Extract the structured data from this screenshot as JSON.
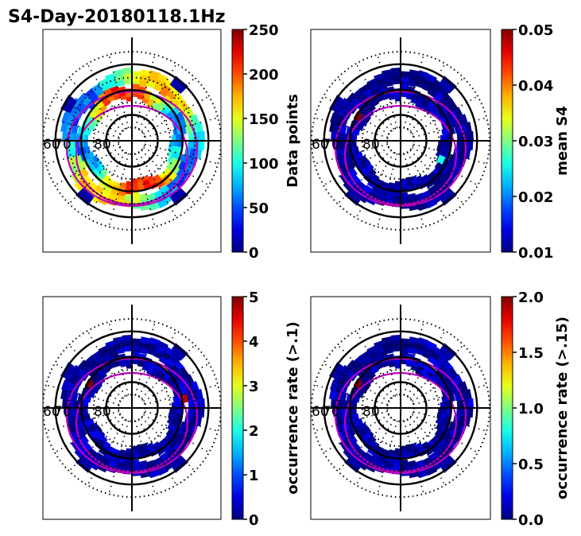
{
  "figure": {
    "title": "S4-Day-20180118.1Hz"
  },
  "colors": {
    "circles": "#000000",
    "boundary": "#c000c0",
    "colormap": "jet"
  },
  "chart_data": [
    {
      "type": "heatmap",
      "projection": "polar",
      "panel": "top-left",
      "colorbar": {
        "label": "Data points",
        "min": 0,
        "max": 250,
        "ticks": [
          "0",
          "50",
          "100",
          "150",
          "200",
          "250"
        ]
      },
      "annotations": [
        "60",
        "70",
        "80"
      ],
      "rings": [
        {
          "r_in": 0.6,
          "r_out": 0.78,
          "base": 0.45,
          "amp": 0.25,
          "phase": 0.6,
          "extend": 0.85
        },
        {
          "r_in": 0.46,
          "r_out": 0.6,
          "base": 0.55,
          "amp": 0.3,
          "phase": 2.1,
          "extend": 0.7
        }
      ]
    },
    {
      "type": "heatmap",
      "projection": "polar",
      "panel": "top-right",
      "colorbar": {
        "label": "mean S4",
        "min": 0.01,
        "max": 0.05,
        "ticks": [
          "0.01",
          "0.02",
          "0.03",
          "0.04",
          "0.05"
        ]
      },
      "annotations": [
        "60",
        "70",
        "80"
      ],
      "rings": [
        {
          "r_in": 0.6,
          "r_out": 0.78,
          "base": 0.03,
          "amp": 0.02,
          "phase": 0.0,
          "extend": 0.85
        },
        {
          "r_in": 0.46,
          "r_out": 0.6,
          "base": 0.03,
          "amp": 0.02,
          "phase": 0.0,
          "extend": 0.7
        }
      ],
      "hotspots": [
        {
          "angle": 300,
          "r": 0.55,
          "value": 1.0
        },
        {
          "angle": 115,
          "r": 0.5,
          "value": 0.4
        }
      ]
    },
    {
      "type": "heatmap",
      "projection": "polar",
      "panel": "bottom-left",
      "colorbar": {
        "label": "occurrence rate (>.1)",
        "min": 0,
        "max": 5,
        "ticks": [
          "0",
          "1",
          "2",
          "3",
          "4",
          "5"
        ]
      },
      "annotations": [
        "60",
        "70",
        "80"
      ],
      "rings": [
        {
          "r_in": 0.6,
          "r_out": 0.78,
          "base": 0.03,
          "amp": 0.02,
          "phase": 0.0,
          "extend": 0.85
        },
        {
          "r_in": 0.46,
          "r_out": 0.6,
          "base": 0.03,
          "amp": 0.02,
          "phase": 0.0,
          "extend": 0.7
        }
      ],
      "hotspots": [
        {
          "angle": 300,
          "r": 0.55,
          "value": 1.0
        },
        {
          "angle": 80,
          "r": 0.6,
          "value": 0.95
        }
      ]
    },
    {
      "type": "heatmap",
      "projection": "polar",
      "panel": "bottom-right",
      "colorbar": {
        "label": "occurrence rate (>.15)",
        "min": 0.0,
        "max": 2.0,
        "ticks": [
          "0.0",
          "0.5",
          "1.0",
          "1.5",
          "2.0"
        ]
      },
      "annotations": [
        "60",
        "70",
        "80"
      ],
      "rings": [
        {
          "r_in": 0.6,
          "r_out": 0.78,
          "base": 0.03,
          "amp": 0.02,
          "phase": 0.0,
          "extend": 0.85
        },
        {
          "r_in": 0.46,
          "r_out": 0.6,
          "base": 0.03,
          "amp": 0.02,
          "phase": 0.0,
          "extend": 0.7
        }
      ],
      "hotspots": [
        {
          "angle": 300,
          "r": 0.55,
          "value": 1.0
        }
      ]
    }
  ]
}
